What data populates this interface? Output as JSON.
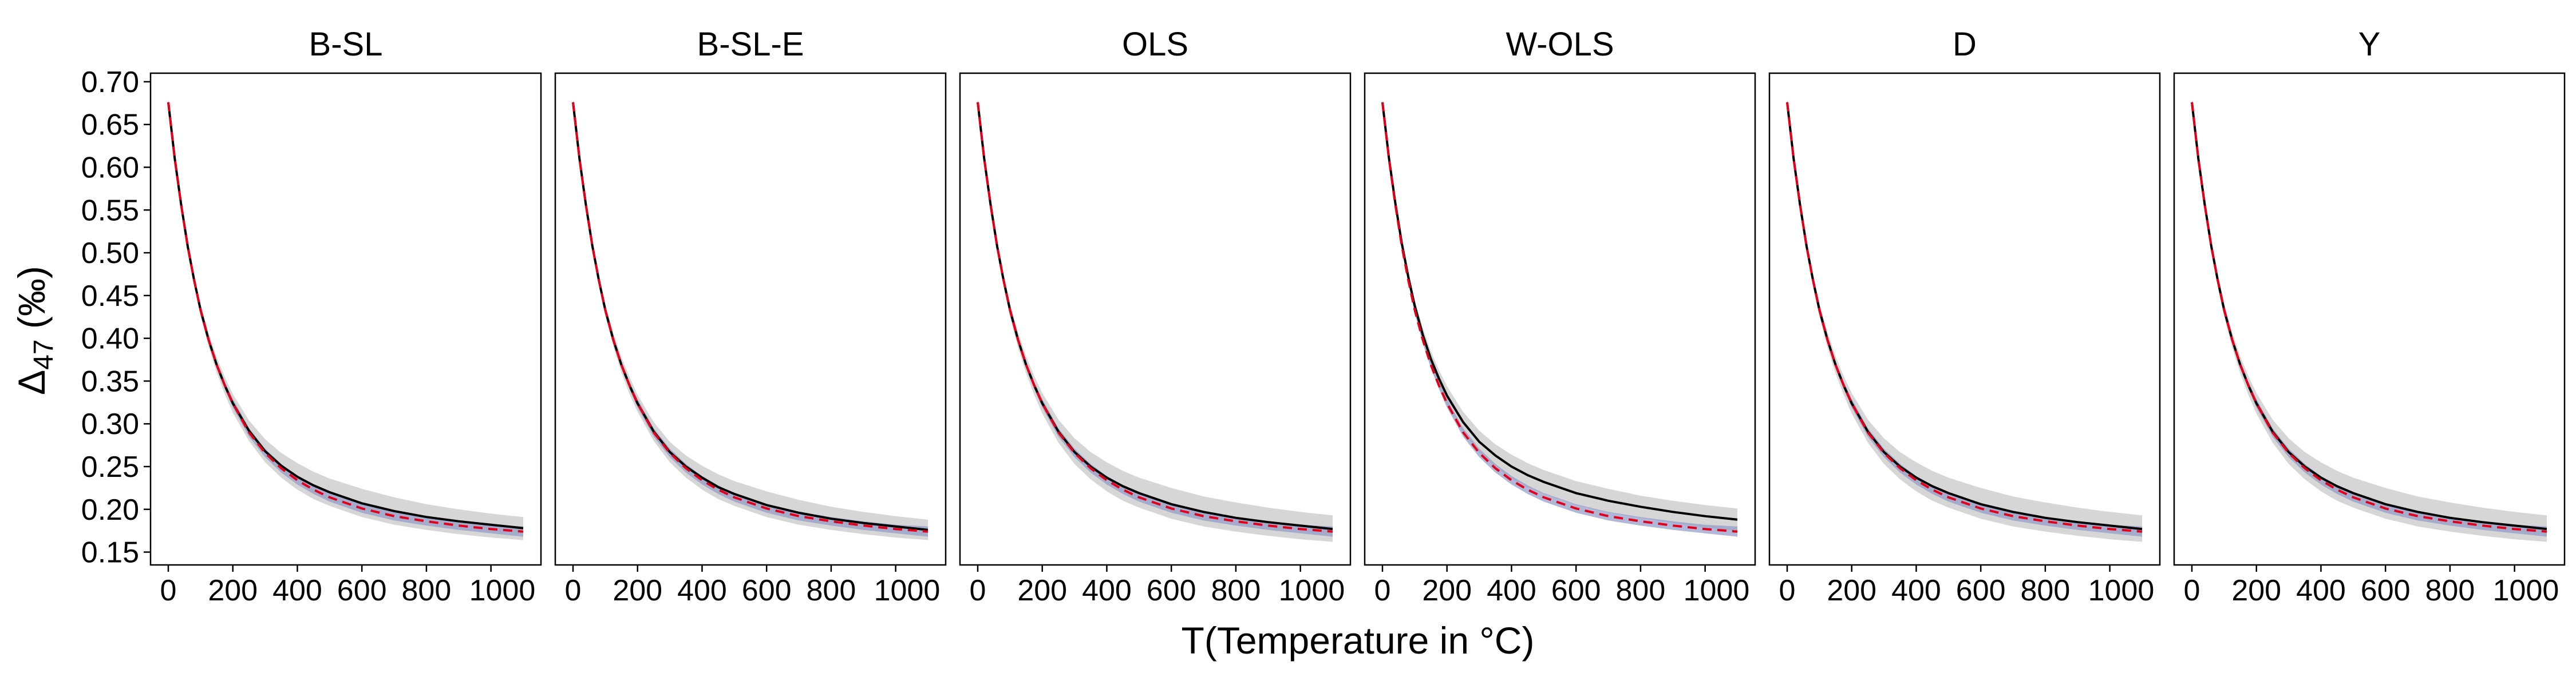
{
  "chart_data": {
    "type": "line",
    "xlabel": "T(Temperature in °C)",
    "ylabel_main": "Δ",
    "ylabel_sub": "47",
    "ylabel_unit": " (‰)",
    "xticks": [
      0,
      200,
      400,
      600,
      800,
      1000
    ],
    "xtick_labels": [
      "0",
      "200",
      "400",
      "600",
      "800",
      "1000"
    ],
    "yticks": [
      0.15,
      0.2,
      0.25,
      0.3,
      0.35,
      0.4,
      0.45,
      0.5,
      0.55,
      0.6,
      0.65,
      0.7
    ],
    "ytick_labels": [
      "0.15",
      "0.20",
      "0.25",
      "0.30",
      "0.35",
      "0.40",
      "0.45",
      "0.50",
      "0.55",
      "0.60",
      "0.65",
      "0.70"
    ],
    "xlim": [
      -55,
      1155
    ],
    "ylim": [
      0.135,
      0.71
    ],
    "x": [
      0,
      20,
      40,
      60,
      80,
      100,
      125,
      150,
      175,
      200,
      250,
      300,
      350,
      400,
      450,
      500,
      600,
      700,
      800,
      900,
      1000,
      1100
    ],
    "colors": {
      "fitted": "#000000",
      "reference": "#e3001b",
      "gray_band": "#cccccc",
      "blue_band": "#8f98c6"
    },
    "panels": [
      {
        "title": "B-SL",
        "fitted": [
          0.676,
          0.61,
          0.556,
          0.508,
          0.468,
          0.433,
          0.398,
          0.369,
          0.345,
          0.324,
          0.292,
          0.268,
          0.251,
          0.238,
          0.228,
          0.22,
          0.207,
          0.198,
          0.191,
          0.186,
          0.182,
          0.178
        ],
        "reference": [
          0.676,
          0.61,
          0.556,
          0.508,
          0.468,
          0.433,
          0.398,
          0.369,
          0.345,
          0.324,
          0.29,
          0.266,
          0.248,
          0.234,
          0.223,
          0.214,
          0.201,
          0.192,
          0.186,
          0.181,
          0.177,
          0.174
        ],
        "gray_upper": [
          0.679,
          0.614,
          0.56,
          0.513,
          0.474,
          0.44,
          0.406,
          0.378,
          0.355,
          0.335,
          0.304,
          0.282,
          0.266,
          0.254,
          0.244,
          0.236,
          0.224,
          0.214,
          0.206,
          0.2,
          0.195,
          0.191
        ],
        "gray_lower": [
          0.673,
          0.606,
          0.552,
          0.503,
          0.462,
          0.426,
          0.39,
          0.36,
          0.335,
          0.313,
          0.28,
          0.255,
          0.237,
          0.223,
          0.212,
          0.204,
          0.191,
          0.182,
          0.176,
          0.171,
          0.167,
          0.164
        ],
        "blue_upper": [
          0.679,
          0.613,
          0.559,
          0.511,
          0.472,
          0.437,
          0.402,
          0.373,
          0.349,
          0.329,
          0.295,
          0.271,
          0.253,
          0.239,
          0.228,
          0.219,
          0.206,
          0.197,
          0.191,
          0.186,
          0.182,
          0.18
        ],
        "blue_lower": [
          0.673,
          0.607,
          0.553,
          0.505,
          0.464,
          0.429,
          0.394,
          0.365,
          0.341,
          0.319,
          0.285,
          0.261,
          0.243,
          0.229,
          0.218,
          0.209,
          0.196,
          0.187,
          0.181,
          0.176,
          0.172,
          0.168
        ]
      },
      {
        "title": "B-SL-E",
        "fitted": [
          0.676,
          0.61,
          0.556,
          0.508,
          0.468,
          0.433,
          0.398,
          0.369,
          0.345,
          0.324,
          0.291,
          0.267,
          0.25,
          0.237,
          0.226,
          0.218,
          0.205,
          0.196,
          0.189,
          0.184,
          0.18,
          0.176
        ],
        "reference": [
          0.676,
          0.61,
          0.556,
          0.508,
          0.468,
          0.433,
          0.398,
          0.369,
          0.345,
          0.324,
          0.29,
          0.266,
          0.248,
          0.234,
          0.223,
          0.214,
          0.201,
          0.192,
          0.186,
          0.181,
          0.177,
          0.174
        ],
        "gray_upper": [
          0.679,
          0.614,
          0.56,
          0.513,
          0.474,
          0.44,
          0.406,
          0.378,
          0.355,
          0.334,
          0.302,
          0.279,
          0.263,
          0.251,
          0.241,
          0.233,
          0.221,
          0.211,
          0.203,
          0.197,
          0.192,
          0.188
        ],
        "gray_lower": [
          0.673,
          0.606,
          0.552,
          0.503,
          0.462,
          0.426,
          0.39,
          0.36,
          0.335,
          0.314,
          0.28,
          0.255,
          0.237,
          0.223,
          0.212,
          0.204,
          0.191,
          0.182,
          0.176,
          0.171,
          0.167,
          0.164
        ],
        "blue_upper": [
          0.679,
          0.613,
          0.559,
          0.511,
          0.472,
          0.437,
          0.402,
          0.373,
          0.349,
          0.329,
          0.295,
          0.271,
          0.253,
          0.239,
          0.228,
          0.219,
          0.206,
          0.197,
          0.191,
          0.186,
          0.182,
          0.18
        ],
        "blue_lower": [
          0.673,
          0.607,
          0.553,
          0.505,
          0.464,
          0.429,
          0.394,
          0.365,
          0.341,
          0.319,
          0.285,
          0.261,
          0.243,
          0.229,
          0.218,
          0.209,
          0.196,
          0.187,
          0.181,
          0.176,
          0.172,
          0.168
        ]
      },
      {
        "title": "OLS",
        "fitted": [
          0.676,
          0.61,
          0.556,
          0.508,
          0.468,
          0.433,
          0.398,
          0.369,
          0.345,
          0.324,
          0.291,
          0.267,
          0.25,
          0.237,
          0.227,
          0.219,
          0.206,
          0.197,
          0.19,
          0.185,
          0.181,
          0.177
        ],
        "reference": [
          0.676,
          0.61,
          0.556,
          0.508,
          0.468,
          0.433,
          0.398,
          0.369,
          0.345,
          0.324,
          0.29,
          0.266,
          0.248,
          0.234,
          0.223,
          0.214,
          0.201,
          0.192,
          0.186,
          0.181,
          0.177,
          0.174
        ],
        "gray_upper": [
          0.68,
          0.615,
          0.561,
          0.514,
          0.475,
          0.441,
          0.407,
          0.379,
          0.356,
          0.336,
          0.305,
          0.283,
          0.267,
          0.255,
          0.245,
          0.237,
          0.225,
          0.215,
          0.208,
          0.202,
          0.197,
          0.193
        ],
        "gray_lower": [
          0.672,
          0.605,
          0.551,
          0.502,
          0.461,
          0.425,
          0.389,
          0.359,
          0.334,
          0.312,
          0.278,
          0.253,
          0.235,
          0.221,
          0.21,
          0.202,
          0.189,
          0.18,
          0.174,
          0.169,
          0.165,
          0.162
        ],
        "blue_upper": [
          0.679,
          0.613,
          0.559,
          0.511,
          0.472,
          0.437,
          0.402,
          0.373,
          0.349,
          0.329,
          0.295,
          0.271,
          0.253,
          0.239,
          0.228,
          0.219,
          0.206,
          0.197,
          0.191,
          0.186,
          0.182,
          0.18
        ],
        "blue_lower": [
          0.673,
          0.607,
          0.553,
          0.505,
          0.464,
          0.429,
          0.394,
          0.365,
          0.341,
          0.319,
          0.285,
          0.261,
          0.243,
          0.229,
          0.218,
          0.209,
          0.196,
          0.187,
          0.181,
          0.176,
          0.172,
          0.168
        ]
      },
      {
        "title": "W-OLS",
        "fitted": [
          0.676,
          0.611,
          0.558,
          0.511,
          0.472,
          0.438,
          0.404,
          0.376,
          0.353,
          0.333,
          0.302,
          0.279,
          0.263,
          0.25,
          0.24,
          0.232,
          0.219,
          0.21,
          0.203,
          0.197,
          0.192,
          0.188
        ],
        "reference": [
          0.676,
          0.61,
          0.556,
          0.508,
          0.468,
          0.433,
          0.398,
          0.369,
          0.345,
          0.324,
          0.29,
          0.266,
          0.248,
          0.234,
          0.223,
          0.214,
          0.201,
          0.192,
          0.186,
          0.181,
          0.177,
          0.174
        ],
        "gray_upper": [
          0.679,
          0.615,
          0.562,
          0.516,
          0.478,
          0.445,
          0.412,
          0.385,
          0.363,
          0.344,
          0.314,
          0.292,
          0.276,
          0.264,
          0.254,
          0.246,
          0.233,
          0.224,
          0.216,
          0.21,
          0.205,
          0.201
        ],
        "gray_lower": [
          0.673,
          0.607,
          0.554,
          0.506,
          0.466,
          0.431,
          0.396,
          0.367,
          0.343,
          0.322,
          0.29,
          0.266,
          0.25,
          0.236,
          0.226,
          0.218,
          0.205,
          0.196,
          0.19,
          0.184,
          0.179,
          0.175
        ],
        "blue_upper": [
          0.679,
          0.613,
          0.559,
          0.511,
          0.472,
          0.437,
          0.402,
          0.373,
          0.349,
          0.329,
          0.295,
          0.271,
          0.253,
          0.239,
          0.228,
          0.219,
          0.206,
          0.197,
          0.191,
          0.186,
          0.182,
          0.18
        ],
        "blue_lower": [
          0.673,
          0.607,
          0.553,
          0.505,
          0.464,
          0.429,
          0.394,
          0.365,
          0.341,
          0.319,
          0.285,
          0.261,
          0.243,
          0.229,
          0.218,
          0.209,
          0.196,
          0.187,
          0.181,
          0.176,
          0.172,
          0.168
        ]
      },
      {
        "title": "D",
        "fitted": [
          0.676,
          0.61,
          0.556,
          0.508,
          0.468,
          0.433,
          0.398,
          0.369,
          0.345,
          0.324,
          0.291,
          0.267,
          0.25,
          0.237,
          0.227,
          0.219,
          0.206,
          0.197,
          0.19,
          0.185,
          0.181,
          0.177
        ],
        "reference": [
          0.676,
          0.61,
          0.556,
          0.508,
          0.468,
          0.433,
          0.398,
          0.369,
          0.345,
          0.324,
          0.29,
          0.266,
          0.248,
          0.234,
          0.223,
          0.214,
          0.201,
          0.192,
          0.186,
          0.181,
          0.177,
          0.174
        ],
        "gray_upper": [
          0.68,
          0.615,
          0.561,
          0.514,
          0.475,
          0.441,
          0.407,
          0.379,
          0.356,
          0.336,
          0.305,
          0.283,
          0.267,
          0.255,
          0.245,
          0.237,
          0.225,
          0.215,
          0.208,
          0.202,
          0.197,
          0.193
        ],
        "gray_lower": [
          0.672,
          0.605,
          0.551,
          0.502,
          0.461,
          0.425,
          0.389,
          0.359,
          0.334,
          0.312,
          0.278,
          0.253,
          0.235,
          0.221,
          0.21,
          0.202,
          0.189,
          0.18,
          0.174,
          0.169,
          0.165,
          0.162
        ],
        "blue_upper": [
          0.679,
          0.613,
          0.559,
          0.511,
          0.472,
          0.437,
          0.402,
          0.373,
          0.349,
          0.329,
          0.295,
          0.271,
          0.253,
          0.239,
          0.228,
          0.219,
          0.206,
          0.197,
          0.191,
          0.186,
          0.182,
          0.18
        ],
        "blue_lower": [
          0.673,
          0.607,
          0.553,
          0.505,
          0.464,
          0.429,
          0.394,
          0.365,
          0.341,
          0.319,
          0.285,
          0.261,
          0.243,
          0.229,
          0.218,
          0.209,
          0.196,
          0.187,
          0.181,
          0.176,
          0.172,
          0.168
        ]
      },
      {
        "title": "Y",
        "fitted": [
          0.676,
          0.61,
          0.556,
          0.508,
          0.468,
          0.433,
          0.398,
          0.369,
          0.345,
          0.324,
          0.291,
          0.267,
          0.25,
          0.237,
          0.227,
          0.219,
          0.206,
          0.197,
          0.19,
          0.185,
          0.181,
          0.177
        ],
        "reference": [
          0.676,
          0.61,
          0.556,
          0.508,
          0.468,
          0.433,
          0.398,
          0.369,
          0.345,
          0.324,
          0.29,
          0.266,
          0.248,
          0.234,
          0.223,
          0.214,
          0.201,
          0.192,
          0.186,
          0.181,
          0.177,
          0.174
        ],
        "gray_upper": [
          0.68,
          0.615,
          0.561,
          0.514,
          0.475,
          0.441,
          0.407,
          0.379,
          0.356,
          0.336,
          0.305,
          0.283,
          0.267,
          0.255,
          0.245,
          0.237,
          0.225,
          0.215,
          0.208,
          0.202,
          0.197,
          0.193
        ],
        "gray_lower": [
          0.672,
          0.605,
          0.551,
          0.502,
          0.461,
          0.425,
          0.389,
          0.359,
          0.334,
          0.312,
          0.278,
          0.253,
          0.235,
          0.221,
          0.21,
          0.202,
          0.189,
          0.18,
          0.174,
          0.169,
          0.165,
          0.162
        ],
        "blue_upper": [
          0.679,
          0.613,
          0.559,
          0.511,
          0.472,
          0.437,
          0.402,
          0.373,
          0.349,
          0.329,
          0.295,
          0.271,
          0.253,
          0.239,
          0.228,
          0.219,
          0.206,
          0.197,
          0.191,
          0.186,
          0.182,
          0.18
        ],
        "blue_lower": [
          0.673,
          0.607,
          0.553,
          0.505,
          0.464,
          0.429,
          0.394,
          0.365,
          0.341,
          0.319,
          0.285,
          0.261,
          0.243,
          0.229,
          0.218,
          0.209,
          0.196,
          0.187,
          0.181,
          0.176,
          0.172,
          0.168
        ]
      }
    ]
  }
}
